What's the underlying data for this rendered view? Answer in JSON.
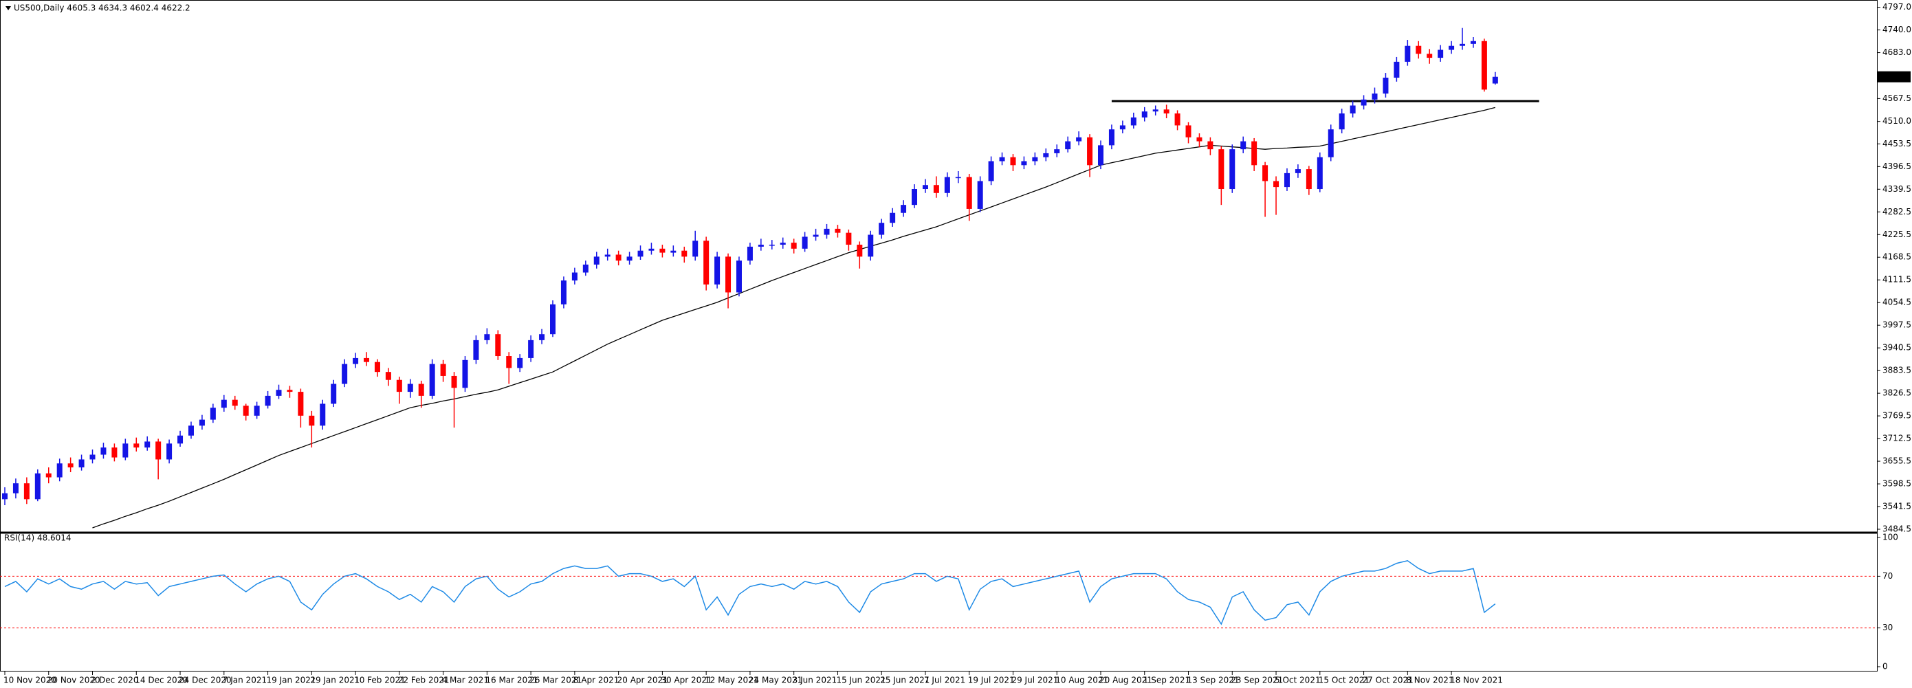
{
  "chart_data": [
    {
      "type": "candlestick",
      "title": "US500,Daily  4605.3 4634.3 4602.4 4622.2",
      "up_color": "#1414e6",
      "down_color": "#ff0000",
      "ma_color": "#000000",
      "ylim": [
        3484.5,
        4797
      ],
      "yticks": [
        {
          "value": 4797,
          "label": "4797.0"
        },
        {
          "value": 4740,
          "label": "4740.0"
        },
        {
          "value": 4683,
          "label": "4683.0"
        },
        4567.5,
        {
          "value": 4510,
          "label": "4510.0"
        },
        4453.5,
        4396.5,
        4339.5,
        4282.5,
        4225.5,
        4168.5,
        4111.5,
        4054.5,
        3997.5,
        3940.5,
        3883.5,
        3826.5,
        3769.5,
        3712.5,
        3655.5,
        3598.5,
        3541.5,
        3484.5
      ],
      "xticks": [
        {
          "value": 0,
          "label": "10 Nov 2020"
        },
        {
          "value": 4,
          "label": "20 Nov 2020"
        },
        {
          "value": 8,
          "label": "2 Dec 2020"
        },
        {
          "value": 12,
          "label": "14 Dec 2020"
        },
        {
          "value": 16,
          "label": "24 Dec 2020"
        },
        {
          "value": 20,
          "label": "7 Jan 2021"
        },
        {
          "value": 24,
          "label": "19 Jan 2021"
        },
        {
          "value": 28,
          "label": "29 Jan 2021"
        },
        {
          "value": 32,
          "label": "10 Feb 2021"
        },
        {
          "value": 36,
          "label": "22 Feb 2021"
        },
        {
          "value": 40,
          "label": "4 Mar 2021"
        },
        {
          "value": 44,
          "label": "16 Mar 2021"
        },
        {
          "value": 48,
          "label": "26 Mar 2021"
        },
        {
          "value": 52,
          "label": "8 Apr 2021"
        },
        {
          "value": 56,
          "label": "20 Apr 2021"
        },
        {
          "value": 60,
          "label": "30 Apr 2021"
        },
        {
          "value": 64,
          "label": "12 May 2021"
        },
        {
          "value": 68,
          "label": "24 May 2021"
        },
        {
          "value": 72,
          "label": "3 Jun 2021"
        },
        {
          "value": 76,
          "label": "15 Jun 2021"
        },
        {
          "value": 80,
          "label": "25 Jun 2021"
        },
        {
          "value": 84,
          "label": "7 Jul 2021"
        },
        {
          "value": 88,
          "label": "19 Jul 2021"
        },
        {
          "value": 92,
          "label": "29 Jul 2021"
        },
        {
          "value": 96,
          "label": "10 Aug 2021"
        },
        {
          "value": 100,
          "label": "20 Aug 2021"
        },
        {
          "value": 104,
          "label": "1 Sep 2021"
        },
        {
          "value": 108,
          "label": "13 Sep 2021"
        },
        {
          "value": 112,
          "label": "23 Sep 2021"
        },
        {
          "value": 116,
          "label": "5 Oct 2021"
        },
        {
          "value": 120,
          "label": "15 Oct 2021"
        },
        {
          "value": 124,
          "label": "27 Oct 2021"
        },
        {
          "value": 128,
          "label": "8 Nov 2021"
        },
        {
          "value": 132,
          "label": "18 Nov 2021"
        }
      ],
      "open": [
        3560,
        3575,
        3600,
        3560,
        3625,
        3615,
        3650,
        3640,
        3660,
        3672,
        3690,
        3665,
        3700,
        3690,
        3705,
        3660,
        3700,
        3720,
        3745,
        3760,
        3790,
        3810,
        3795,
        3770,
        3795,
        3820,
        3835,
        3830,
        3770,
        3745,
        3800,
        3850,
        3900,
        3915,
        3905,
        3880,
        3860,
        3830,
        3850,
        3820,
        3900,
        3870,
        3840,
        3910,
        3960,
        3975,
        3920,
        3890,
        3915,
        3960,
        3975,
        4050,
        4110,
        4130,
        4150,
        4170,
        4175,
        4160,
        4170,
        4185,
        4190,
        4180,
        4185,
        4170,
        4210,
        4100,
        4170,
        4080,
        4160,
        4195,
        4200,
        4200,
        4205,
        4190,
        4220,
        4225,
        4240,
        4230,
        4200,
        4170,
        4225,
        4255,
        4280,
        4300,
        4340,
        4350,
        4330,
        4370,
        4370,
        4290,
        4360,
        4410,
        4420,
        4400,
        4410,
        4420,
        4430,
        4440,
        4460,
        4470,
        4400,
        4450,
        4490,
        4500,
        4520,
        4535,
        4540,
        4530,
        4500,
        4470,
        4460,
        4440,
        4340,
        4440,
        4460,
        4400,
        4360,
        4345,
        4380,
        4390,
        4340,
        4420,
        4490,
        4530,
        4550,
        4565,
        4580,
        4620,
        4660,
        4700,
        4680,
        4670,
        4690,
        4700,
        4705,
        4712,
        4605.3
      ],
      "high": [
        3590,
        3612,
        3615,
        3635,
        3640,
        3662,
        3665,
        3672,
        3685,
        3702,
        3700,
        3712,
        3715,
        3718,
        3712,
        3710,
        3732,
        3755,
        3772,
        3800,
        3822,
        3820,
        3800,
        3805,
        3832,
        3848,
        3845,
        3838,
        3782,
        3810,
        3860,
        3912,
        3928,
        3930,
        3912,
        3890,
        3868,
        3862,
        3858,
        3912,
        3910,
        3880,
        3920,
        3972,
        3990,
        3985,
        3930,
        3925,
        3972,
        3988,
        4060,
        4120,
        4142,
        4160,
        4182,
        4190,
        4185,
        4182,
        4198,
        4205,
        4200,
        4198,
        4195,
        4235,
        4220,
        4182,
        4178,
        4170,
        4205,
        4215,
        4212,
        4218,
        4215,
        4232,
        4240,
        4252,
        4250,
        4238,
        4208,
        4235,
        4265,
        4292,
        4312,
        4352,
        4365,
        4372,
        4382,
        4385,
        4378,
        4372,
        4422,
        4432,
        4428,
        4422,
        4432,
        4442,
        4452,
        4472,
        4485,
        4478,
        4462,
        4502,
        4512,
        4532,
        4546,
        4550,
        4552,
        4538,
        4508,
        4480,
        4470,
        4448,
        4452,
        4472,
        4468,
        4408,
        4372,
        4392,
        4402,
        4398,
        4432,
        4502,
        4542,
        4562,
        4576,
        4595,
        4632,
        4672,
        4715,
        4712,
        4692,
        4702,
        4712,
        4745,
        4722,
        4718,
        4634.3
      ],
      "low": [
        3545,
        3562,
        3548,
        3555,
        3600,
        3605,
        3628,
        3632,
        3650,
        3662,
        3655,
        3658,
        3680,
        3682,
        3610,
        3650,
        3692,
        3712,
        3735,
        3752,
        3780,
        3785,
        3758,
        3762,
        3788,
        3812,
        3815,
        3740,
        3690,
        3735,
        3792,
        3842,
        3890,
        3895,
        3868,
        3845,
        3800,
        3815,
        3790,
        3812,
        3855,
        3740,
        3830,
        3900,
        3950,
        3910,
        3850,
        3880,
        3905,
        3950,
        3968,
        4040,
        4100,
        4122,
        4140,
        4160,
        4148,
        4150,
        4162,
        4175,
        4168,
        4170,
        4155,
        4160,
        4085,
        4090,
        4040,
        4070,
        4150,
        4185,
        4188,
        4190,
        4178,
        4182,
        4210,
        4215,
        4218,
        4185,
        4140,
        4160,
        4215,
        4245,
        4270,
        4292,
        4330,
        4318,
        4320,
        4355,
        4260,
        4282,
        4350,
        4400,
        4385,
        4390,
        4400,
        4410,
        4420,
        4432,
        4450,
        4370,
        4390,
        4440,
        4480,
        4492,
        4510,
        4525,
        4518,
        4488,
        4455,
        4445,
        4425,
        4300,
        4330,
        4430,
        4385,
        4270,
        4275,
        4335,
        4368,
        4325,
        4332,
        4410,
        4480,
        4520,
        4540,
        4555,
        4570,
        4610,
        4650,
        4668,
        4655,
        4660,
        4680,
        4690,
        4695,
        4585,
        4602.4
      ],
      "close": [
        3575,
        3600,
        3560,
        3625,
        3615,
        3650,
        3640,
        3660,
        3672,
        3690,
        3665,
        3700,
        3690,
        3705,
        3660,
        3700,
        3720,
        3745,
        3760,
        3790,
        3810,
        3795,
        3770,
        3795,
        3820,
        3835,
        3830,
        3770,
        3745,
        3800,
        3850,
        3900,
        3915,
        3905,
        3880,
        3860,
        3830,
        3850,
        3820,
        3900,
        3870,
        3840,
        3910,
        3960,
        3975,
        3920,
        3890,
        3915,
        3960,
        3975,
        4050,
        4110,
        4130,
        4150,
        4170,
        4175,
        4160,
        4170,
        4185,
        4190,
        4180,
        4185,
        4170,
        4210,
        4100,
        4170,
        4080,
        4160,
        4195,
        4200,
        4200,
        4205,
        4190,
        4220,
        4225,
        4240,
        4230,
        4200,
        4170,
        4225,
        4255,
        4280,
        4300,
        4340,
        4350,
        4330,
        4370,
        4370,
        4290,
        4360,
        4410,
        4420,
        4400,
        4410,
        4420,
        4430,
        4440,
        4460,
        4470,
        4400,
        4450,
        4490,
        4500,
        4520,
        4535,
        4540,
        4530,
        4500,
        4470,
        4460,
        4440,
        4340,
        4440,
        4460,
        4400,
        4360,
        4345,
        4380,
        4390,
        4340,
        4420,
        4490,
        4530,
        4550,
        4565,
        4580,
        4620,
        4660,
        4700,
        4680,
        4670,
        4690,
        4700,
        4705,
        4712,
        4590,
        4622.2
      ],
      "ma": [
        null,
        null,
        null,
        null,
        null,
        null,
        null,
        null,
        3488,
        3498,
        3507,
        3517,
        3526,
        3536,
        3545,
        3555,
        3566,
        3577,
        3588,
        3599,
        3610,
        3622,
        3634,
        3646,
        3658,
        3670,
        3680,
        3690,
        3700,
        3710,
        3720,
        3730,
        3740,
        3750,
        3760,
        3770,
        3780,
        3790,
        3796,
        3801,
        3807,
        3812,
        3818,
        3824,
        3829,
        3835,
        3844,
        3853,
        3862,
        3871,
        3880,
        3894,
        3908,
        3922,
        3936,
        3950,
        3962,
        3974,
        3986,
        3998,
        4010,
        4019,
        4028,
        4037,
        4046,
        4055,
        4066,
        4077,
        4088,
        4099,
        4110,
        4120,
        4130,
        4140,
        4150,
        4160,
        4170,
        4180,
        4188,
        4196,
        4204,
        4212,
        4221,
        4229,
        4237,
        4245,
        4255,
        4265,
        4275,
        4285,
        4295,
        4305,
        4315,
        4325,
        4335,
        4345,
        4356,
        4367,
        4378,
        4389,
        4400,
        4406,
        4412,
        4418,
        4424,
        4430,
        4434,
        4438,
        4442,
        4446,
        4450,
        4448,
        4446,
        4444,
        4442,
        4440,
        4442,
        4443,
        4445,
        4446,
        4448,
        4454,
        4460,
        4466,
        4472,
        4478,
        4484,
        4490,
        4496,
        4502,
        4508,
        4514,
        4520,
        4526,
        4532,
        4538,
        4545
      ],
      "support_line": {
        "value": 4561,
        "start": 101,
        "end": 140
      }
    },
    {
      "type": "line",
      "title": "RSI(14) 48.6014",
      "color": "#1e8ae6",
      "level_color": "#ff0000",
      "ylim": [
        0,
        100
      ],
      "yticks": [
        100,
        70,
        30,
        0
      ],
      "values": [
        62,
        66,
        58,
        68,
        64,
        68,
        62,
        60,
        64,
        66,
        60,
        66,
        64,
        65,
        55,
        62,
        64,
        66,
        68,
        70,
        71,
        64,
        58,
        64,
        68,
        70,
        66,
        50,
        44,
        56,
        64,
        70,
        72,
        68,
        62,
        58,
        52,
        56,
        50,
        62,
        58,
        50,
        62,
        68,
        70,
        60,
        54,
        58,
        64,
        66,
        72,
        76,
        78,
        76,
        76,
        78,
        70,
        72,
        72,
        70,
        66,
        68,
        62,
        70,
        44,
        54,
        40,
        56,
        62,
        64,
        62,
        64,
        60,
        66,
        64,
        66,
        62,
        50,
        42,
        58,
        64,
        66,
        68,
        72,
        72,
        66,
        70,
        68,
        44,
        60,
        66,
        68,
        62,
        64,
        66,
        68,
        70,
        72,
        74,
        50,
        62,
        68,
        70,
        72,
        72,
        72,
        68,
        58,
        52,
        50,
        46,
        33,
        54,
        58,
        44,
        36,
        38,
        48,
        50,
        40,
        58,
        66,
        70,
        72,
        74,
        74,
        76,
        80,
        82,
        76,
        72,
        74,
        74,
        74,
        76,
        42,
        48.6014
      ]
    }
  ]
}
